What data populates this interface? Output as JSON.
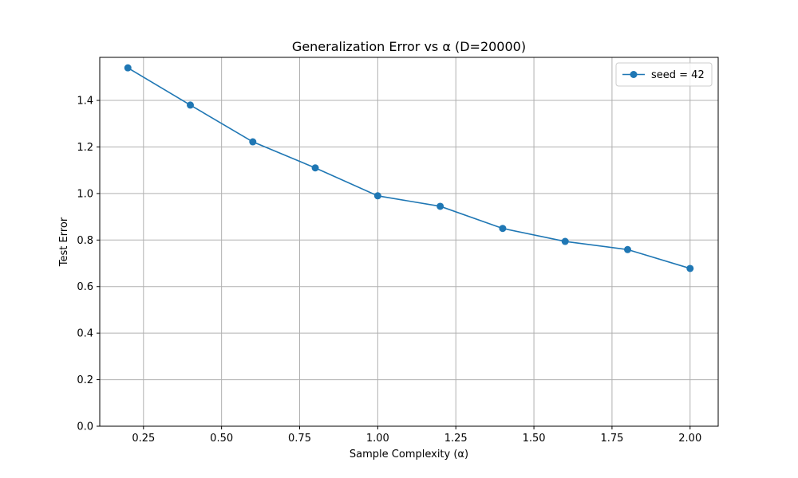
{
  "chart_data": {
    "type": "line",
    "title": "Generalization Error vs α (D=20000)",
    "xlabel": "Sample Complexity (α)",
    "ylabel": "Test Error",
    "xlim": [
      0.11,
      2.09
    ],
    "ylim": [
      0.0,
      1.585
    ],
    "xticks": [
      0.25,
      0.5,
      0.75,
      1.0,
      1.25,
      1.5,
      1.75,
      2.0
    ],
    "xtick_labels": [
      "0.25",
      "0.50",
      "0.75",
      "1.00",
      "1.25",
      "1.50",
      "1.75",
      "2.00"
    ],
    "yticks": [
      0.0,
      0.2,
      0.4,
      0.6,
      0.8,
      1.0,
      1.2,
      1.4
    ],
    "ytick_labels": [
      "0.0",
      "0.2",
      "0.4",
      "0.6",
      "0.8",
      "1.0",
      "1.2",
      "1.4"
    ],
    "grid": true,
    "legend_position": "top-right",
    "series": [
      {
        "name": "seed = 42",
        "color": "#1f77b4",
        "marker": "circle",
        "x": [
          0.2,
          0.4,
          0.6,
          0.8,
          1.0,
          1.2,
          1.4,
          1.6,
          1.8,
          2.0
        ],
        "y": [
          1.54,
          1.38,
          1.222,
          1.11,
          0.99,
          0.945,
          0.85,
          0.794,
          0.759,
          0.678
        ]
      }
    ]
  }
}
